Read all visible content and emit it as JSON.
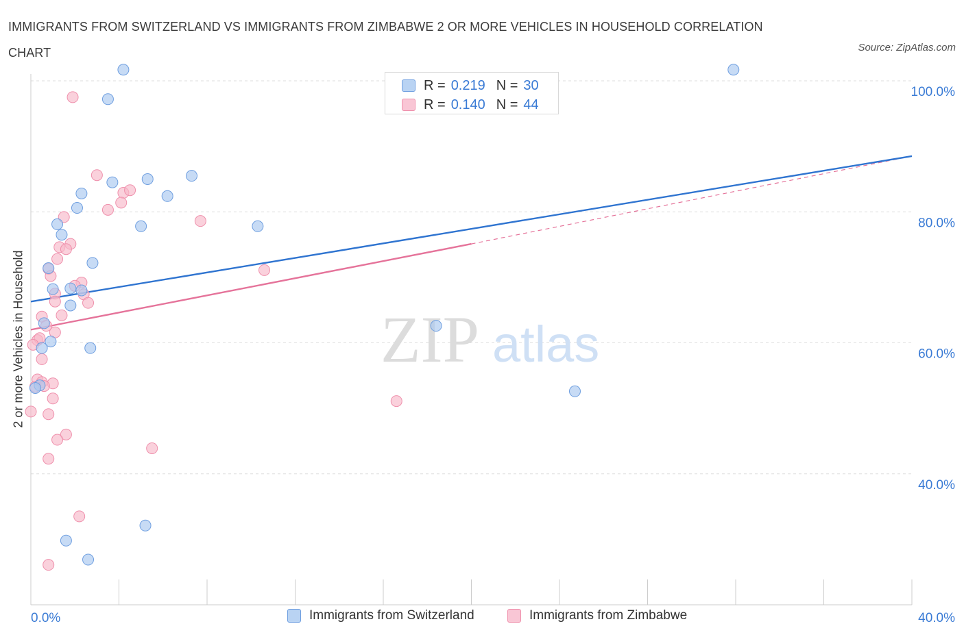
{
  "title": "IMMIGRANTS FROM SWITZERLAND VS IMMIGRANTS FROM ZIMBABWE 2 OR MORE VEHICLES IN HOUSEHOLD CORRELATION CHART",
  "source": "Source: ZipAtlas.com",
  "watermark": {
    "zip": "ZIP",
    "atlas": "atlas"
  },
  "legend_stats": [
    {
      "r_label": "R =",
      "r_value": "0.219",
      "n_label": "N =",
      "n_value": "30"
    },
    {
      "r_label": "R =",
      "r_value": "0.140",
      "n_label": "N =",
      "n_value": "44"
    }
  ],
  "colors": {
    "switzerland_fill": "#a9c8f0",
    "switzerland_stroke": "#6f9fe0",
    "switzerland_line": "#2f74d0",
    "zimbabwe_fill": "#f7b8ca",
    "zimbabwe_stroke": "#ef90ac",
    "zimbabwe_line": "#e5739a",
    "value_text": "#3a7bd5",
    "grid": "#dedede"
  },
  "chart_data": {
    "type": "scatter",
    "title": "IMMIGRANTS FROM SWITZERLAND VS IMMIGRANTS FROM ZIMBABWE 2 OR MORE VEHICLES IN HOUSEHOLD CORRELATION CHART",
    "xlabel": "",
    "ylabel": "2 or more Vehicles in Household",
    "xlim": [
      0,
      40
    ],
    "ylim": [
      20,
      100
    ],
    "x_tick_labels": [
      "0.0%",
      "40.0%"
    ],
    "y_ticks": [
      40,
      60,
      80,
      100
    ],
    "y_tick_labels": [
      "40.0%",
      "60.0%",
      "80.0%",
      "100.0%"
    ],
    "grid": true,
    "legend_position": "bottom",
    "series": [
      {
        "name": "Immigrants from Switzerland",
        "points": [
          [
            4.2,
            101.7
          ],
          [
            3.5,
            97.2
          ],
          [
            31.9,
            101.7
          ],
          [
            3.7,
            84.5
          ],
          [
            5.3,
            85.0
          ],
          [
            7.3,
            85.5
          ],
          [
            2.3,
            82.8
          ],
          [
            6.2,
            82.4
          ],
          [
            2.1,
            80.6
          ],
          [
            1.2,
            78.1
          ],
          [
            5.0,
            77.8
          ],
          [
            10.3,
            77.8
          ],
          [
            1.4,
            76.5
          ],
          [
            2.8,
            72.2
          ],
          [
            0.8,
            71.4
          ],
          [
            1.0,
            68.2
          ],
          [
            1.8,
            68.3
          ],
          [
            2.3,
            68.0
          ],
          [
            1.8,
            65.7
          ],
          [
            0.6,
            63.0
          ],
          [
            18.4,
            62.6
          ],
          [
            0.9,
            60.2
          ],
          [
            0.5,
            59.2
          ],
          [
            2.7,
            59.2
          ],
          [
            0.4,
            53.5
          ],
          [
            0.2,
            53.1
          ],
          [
            24.7,
            52.6
          ],
          [
            5.2,
            32.1
          ],
          [
            1.6,
            29.8
          ],
          [
            2.6,
            26.9
          ]
        ],
        "trend": {
          "x": [
            0,
            40
          ],
          "y": [
            66.3,
            88.5
          ]
        }
      },
      {
        "name": "Immigrants from Zimbabwe",
        "points": [
          [
            1.9,
            97.5
          ],
          [
            3.0,
            85.6
          ],
          [
            4.2,
            82.9
          ],
          [
            4.5,
            83.3
          ],
          [
            4.1,
            81.4
          ],
          [
            3.5,
            80.3
          ],
          [
            1.5,
            79.2
          ],
          [
            7.7,
            78.6
          ],
          [
            1.3,
            74.6
          ],
          [
            1.8,
            75.1
          ],
          [
            1.6,
            74.3
          ],
          [
            1.2,
            72.8
          ],
          [
            0.8,
            71.3
          ],
          [
            10.6,
            71.1
          ],
          [
            0.9,
            70.2
          ],
          [
            2.3,
            69.2
          ],
          [
            2.4,
            67.4
          ],
          [
            1.1,
            67.5
          ],
          [
            1.1,
            66.3
          ],
          [
            2.6,
            66.1
          ],
          [
            0.5,
            64.0
          ],
          [
            1.4,
            64.2
          ],
          [
            0.7,
            62.6
          ],
          [
            1.1,
            61.6
          ],
          [
            0.3,
            60.4
          ],
          [
            0.4,
            60.7
          ],
          [
            0.1,
            59.7
          ],
          [
            0.5,
            57.5
          ],
          [
            0.3,
            54.4
          ],
          [
            0.5,
            54.0
          ],
          [
            1.0,
            53.8
          ],
          [
            0.6,
            53.4
          ],
          [
            0.2,
            53.3
          ],
          [
            1.0,
            51.5
          ],
          [
            16.6,
            51.1
          ],
          [
            0.0,
            49.5
          ],
          [
            0.8,
            49.1
          ],
          [
            1.6,
            46.0
          ],
          [
            1.2,
            45.2
          ],
          [
            5.5,
            43.9
          ],
          [
            0.8,
            42.3
          ],
          [
            2.2,
            33.5
          ],
          [
            0.8,
            26.1
          ],
          [
            2.0,
            68.7
          ]
        ],
        "trend": {
          "x": [
            0,
            20
          ],
          "y": [
            62.0,
            75.1
          ]
        },
        "trend_extension": {
          "x": [
            20,
            40
          ],
          "y": [
            75.1,
            88.5
          ]
        }
      }
    ]
  }
}
